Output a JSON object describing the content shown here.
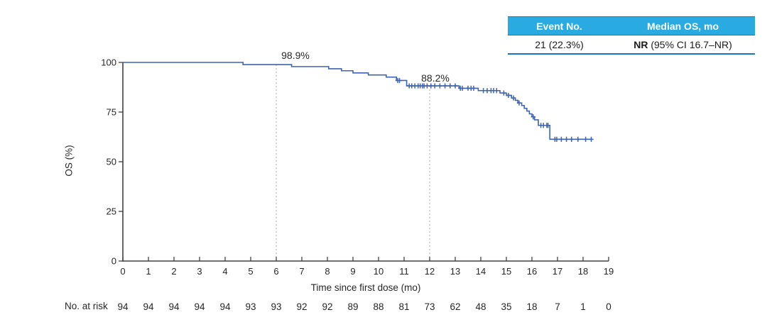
{
  "summary_table": {
    "headers": [
      "Event No.",
      "Median OS, mo"
    ],
    "event_no": "21 (22.3%)",
    "median_os_bold": "NR",
    "median_os_rest": " (95% CI 16.7–NR)",
    "header_bg": "#29abe2",
    "header_text_color": "#ffffff",
    "rule_color": "#1b75bc"
  },
  "chart_data": {
    "type": "line",
    "subtype": "kaplan-meier-step-curve",
    "title": "",
    "xlabel": "Time since first dose (mo)",
    "ylabel": "OS (%)",
    "xlim": [
      0,
      19
    ],
    "ylim": [
      0,
      100
    ],
    "grid": "off",
    "x_ticks": [
      0,
      1,
      2,
      3,
      4,
      5,
      6,
      7,
      8,
      9,
      10,
      11,
      12,
      13,
      14,
      15,
      16,
      17,
      18,
      19
    ],
    "y_ticks": [
      0,
      25,
      50,
      75,
      100
    ],
    "line_color": "#3f63ae",
    "axis_color": "#404040",
    "dashed_line_color": "#aaaaaa",
    "series": [
      {
        "name": "OS",
        "start": [
          0,
          100
        ],
        "steps": [
          [
            4.7,
            98.9
          ],
          [
            6.6,
            97.9
          ],
          [
            8.05,
            96.8
          ],
          [
            8.55,
            95.8
          ],
          [
            9.0,
            94.7
          ],
          [
            9.6,
            93.7
          ],
          [
            10.3,
            92.6
          ],
          [
            10.7,
            90.9
          ],
          [
            11.1,
            88.2
          ],
          [
            13.15,
            87.0
          ],
          [
            13.9,
            85.8
          ],
          [
            14.75,
            84.6
          ],
          [
            15.0,
            83.4
          ],
          [
            15.2,
            82.1
          ],
          [
            15.35,
            80.9
          ],
          [
            15.45,
            79.6
          ],
          [
            15.6,
            78.3
          ],
          [
            15.7,
            76.9
          ],
          [
            15.8,
            75.5
          ],
          [
            15.9,
            74.1
          ],
          [
            16.0,
            72.6
          ],
          [
            16.1,
            71.1
          ],
          [
            16.25,
            68.3
          ],
          [
            16.7,
            61.3
          ]
        ],
        "end_time": 18.35,
        "censor_marks": [
          [
            10.75,
            90.9
          ],
          [
            10.82,
            90.9
          ],
          [
            11.2,
            88.2
          ],
          [
            11.3,
            88.2
          ],
          [
            11.42,
            88.2
          ],
          [
            11.55,
            88.2
          ],
          [
            11.63,
            88.2
          ],
          [
            11.72,
            88.2
          ],
          [
            11.78,
            88.2
          ],
          [
            11.9,
            88.2
          ],
          [
            12.05,
            88.2
          ],
          [
            12.2,
            88.2
          ],
          [
            12.4,
            88.2
          ],
          [
            12.6,
            88.2
          ],
          [
            12.8,
            88.2
          ],
          [
            13.0,
            88.2
          ],
          [
            13.2,
            87.0
          ],
          [
            13.28,
            87.0
          ],
          [
            13.5,
            87.0
          ],
          [
            13.62,
            87.0
          ],
          [
            13.72,
            87.0
          ],
          [
            14.1,
            85.8
          ],
          [
            14.25,
            85.8
          ],
          [
            14.4,
            85.8
          ],
          [
            14.5,
            85.8
          ],
          [
            14.62,
            85.8
          ],
          [
            14.9,
            84.6
          ],
          [
            15.08,
            83.4
          ],
          [
            15.28,
            82.1
          ],
          [
            15.5,
            79.6
          ],
          [
            16.05,
            72.6
          ],
          [
            16.35,
            68.3
          ],
          [
            16.45,
            68.3
          ],
          [
            16.58,
            68.3
          ],
          [
            16.63,
            68.3
          ],
          [
            16.9,
            61.3
          ],
          [
            16.97,
            61.3
          ],
          [
            17.15,
            61.3
          ],
          [
            17.35,
            61.3
          ],
          [
            17.55,
            61.3
          ],
          [
            17.8,
            61.3
          ],
          [
            18.1,
            61.3
          ],
          [
            18.32,
            61.3
          ]
        ]
      }
    ],
    "reference_lines": [
      {
        "x": 6,
        "y_top": 98.9,
        "label": "98.9%"
      },
      {
        "x": 12,
        "y_top": 88.2,
        "label": "88.2%"
      }
    ],
    "at_risk": {
      "label": "No. at risk",
      "values": [
        94,
        94,
        94,
        94,
        94,
        93,
        93,
        92,
        92,
        89,
        88,
        81,
        73,
        62,
        48,
        35,
        18,
        7,
        1,
        0
      ]
    }
  }
}
